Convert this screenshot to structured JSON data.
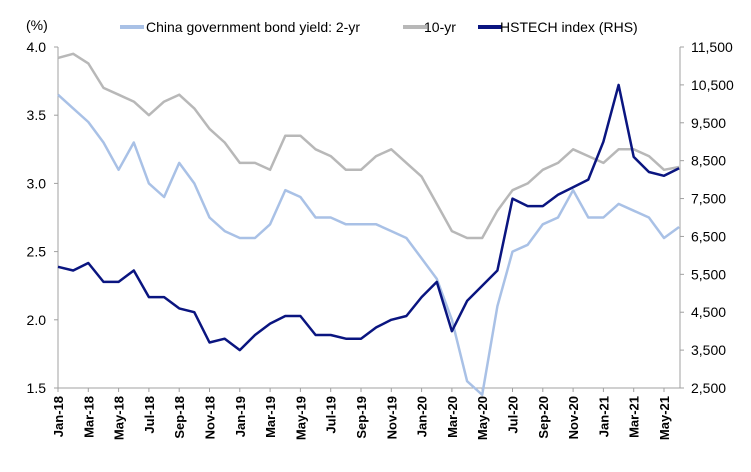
{
  "chart_data": {
    "type": "line",
    "left_axis_unit": "(%)",
    "ylim": [
      1.5,
      4.0
    ],
    "y_ticks": [
      "4.0",
      "3.5",
      "3.0",
      "2.5",
      "2.0",
      "1.5"
    ],
    "y2lim": [
      2500,
      11500
    ],
    "y2_ticks": [
      "11,500",
      "10,500",
      "9,500",
      "8,500",
      "7,500",
      "6,500",
      "5,500",
      "4,500",
      "3,500",
      "2,500"
    ],
    "x_ticks": [
      "Jan-18",
      "Mar-18",
      "May-18",
      "Jul-18",
      "Sep-18",
      "Nov-18",
      "Jan-19",
      "Mar-19",
      "May-19",
      "Jul-19",
      "Sep-19",
      "Nov-19",
      "Jan-20",
      "Mar-20",
      "May-20",
      "Jul-20",
      "Sep-20",
      "Nov-20",
      "Jan-21",
      "Mar-21",
      "May-21"
    ],
    "x": [
      "Jan-18",
      "Feb-18",
      "Mar-18",
      "Apr-18",
      "May-18",
      "Jun-18",
      "Jul-18",
      "Aug-18",
      "Sep-18",
      "Oct-18",
      "Nov-18",
      "Dec-18",
      "Jan-19",
      "Feb-19",
      "Mar-19",
      "Apr-19",
      "May-19",
      "Jun-19",
      "Jul-19",
      "Aug-19",
      "Sep-19",
      "Oct-19",
      "Nov-19",
      "Dec-19",
      "Jan-20",
      "Feb-20",
      "Mar-20",
      "Apr-20",
      "May-20",
      "Jun-20",
      "Jul-20",
      "Aug-20",
      "Sep-20",
      "Oct-20",
      "Nov-20",
      "Dec-20",
      "Jan-21",
      "Feb-21",
      "Mar-21",
      "Apr-21",
      "May-21",
      "Jun-21"
    ],
    "series": [
      {
        "name": "China government bond yield: 2-yr",
        "axis": "left",
        "color": "#a9c1e6",
        "values": [
          3.65,
          3.55,
          3.45,
          3.3,
          3.1,
          3.3,
          3.0,
          2.9,
          3.15,
          3.0,
          2.75,
          2.65,
          2.6,
          2.6,
          2.7,
          2.95,
          2.9,
          2.75,
          2.75,
          2.7,
          2.7,
          2.7,
          2.65,
          2.6,
          2.45,
          2.3,
          2.0,
          1.55,
          1.45,
          2.1,
          2.5,
          2.55,
          2.7,
          2.75,
          2.95,
          2.75,
          2.75,
          2.85,
          2.8,
          2.75,
          2.6,
          2.68
        ]
      },
      {
        "name": "10-yr",
        "axis": "left",
        "color": "#b8b8b8",
        "values": [
          3.92,
          3.95,
          3.88,
          3.7,
          3.65,
          3.6,
          3.5,
          3.6,
          3.65,
          3.55,
          3.4,
          3.3,
          3.15,
          3.15,
          3.1,
          3.35,
          3.35,
          3.25,
          3.2,
          3.1,
          3.1,
          3.2,
          3.25,
          3.15,
          3.05,
          2.85,
          2.65,
          2.6,
          2.6,
          2.8,
          2.95,
          3.0,
          3.1,
          3.15,
          3.25,
          3.2,
          3.15,
          3.25,
          3.25,
          3.2,
          3.1,
          3.12
        ]
      },
      {
        "name": "HSTECH index (RHS)",
        "axis": "right",
        "color": "#0a1580",
        "values": [
          5700,
          5600,
          5800,
          5300,
          5300,
          5600,
          4900,
          4900,
          4600,
          4500,
          3700,
          3800,
          3500,
          3900,
          4200,
          4400,
          4400,
          3900,
          3900,
          3800,
          3800,
          4100,
          4300,
          4400,
          4900,
          5300,
          4000,
          4800,
          5200,
          5600,
          7500,
          7300,
          7300,
          7600,
          7800,
          8000,
          9000,
          10500,
          8600,
          8200,
          8100,
          8300
        ]
      }
    ]
  }
}
